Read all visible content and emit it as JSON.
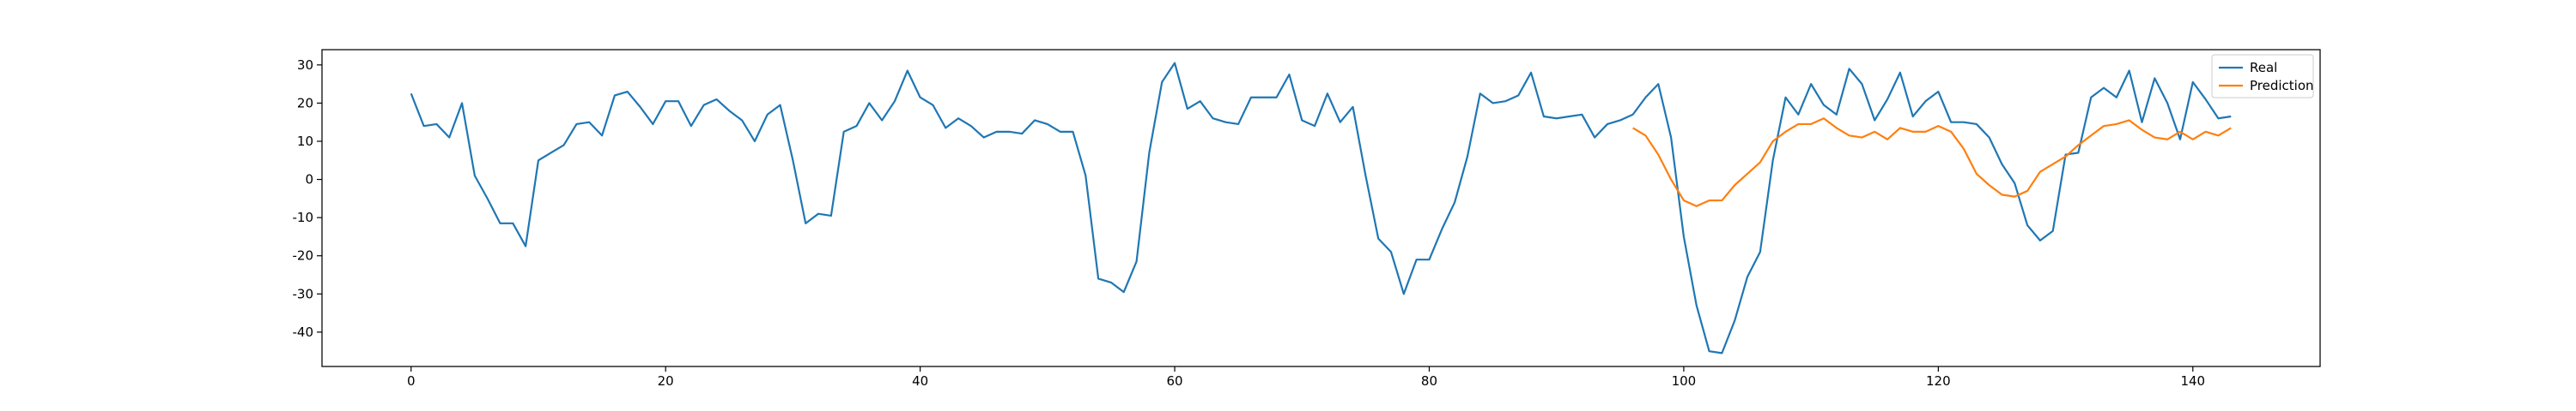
{
  "chart_data": {
    "type": "line",
    "title": "",
    "xlabel": "",
    "ylabel": "",
    "xlim": [
      -7,
      150
    ],
    "ylim": [
      -49,
      34
    ],
    "xticks": [
      0,
      20,
      40,
      60,
      80,
      100,
      120,
      140
    ],
    "yticks": [
      -40,
      -30,
      -20,
      -10,
      0,
      10,
      20,
      30
    ],
    "grid": false,
    "legend_position": "top-right",
    "series": [
      {
        "name": "Real",
        "color": "#1f77b4",
        "x": [
          0,
          1,
          2,
          3,
          4,
          5,
          6,
          7,
          8,
          9,
          10,
          11,
          12,
          13,
          14,
          15,
          16,
          17,
          18,
          19,
          20,
          21,
          22,
          23,
          24,
          25,
          26,
          27,
          28,
          29,
          30,
          31,
          32,
          33,
          34,
          35,
          36,
          37,
          38,
          39,
          40,
          41,
          42,
          43,
          44,
          45,
          46,
          47,
          48,
          49,
          50,
          51,
          52,
          53,
          54,
          55,
          56,
          57,
          58,
          59,
          60,
          61,
          62,
          63,
          64,
          65,
          66,
          67,
          68,
          69,
          70,
          71,
          72,
          73,
          74,
          75,
          76,
          77,
          78,
          79,
          80,
          81,
          82,
          83,
          84,
          85,
          86,
          87,
          88,
          89,
          90,
          91,
          92,
          93,
          94,
          95,
          96,
          97,
          98,
          99,
          100,
          101,
          102,
          103,
          104,
          105,
          106,
          107,
          108,
          109,
          110,
          111,
          112,
          113,
          114,
          115,
          116,
          117,
          118,
          119,
          120,
          121,
          122,
          123,
          124,
          125,
          126,
          127,
          128,
          129,
          130,
          131,
          132,
          133,
          134,
          135,
          136,
          137,
          138,
          139,
          140,
          141,
          142,
          143
        ],
        "y": [
          22.5,
          14,
          14.5,
          11,
          20,
          1,
          -5,
          -11.5,
          -11.5,
          -17.5,
          5,
          7,
          9,
          14.5,
          15,
          11.5,
          22,
          23,
          19,
          14.5,
          20.5,
          20.5,
          14,
          19.5,
          21,
          18,
          15.5,
          10,
          17,
          19.5,
          5,
          -11.5,
          -9,
          -9.5,
          12.5,
          14,
          20,
          15.5,
          20.5,
          28.5,
          21.5,
          19.5,
          13.5,
          16,
          14,
          11,
          12.5,
          12.5,
          12,
          15.5,
          14.5,
          12.5,
          12.5,
          1,
          -26,
          -27,
          -29.5,
          -21.5,
          7,
          25.5,
          30.5,
          18.5,
          20.5,
          16,
          15,
          14.5,
          21.5,
          21.5,
          21.5,
          27.5,
          15.5,
          14,
          22.5,
          15,
          19,
          1,
          -15.5,
          -19,
          -30,
          -21,
          -21,
          -13,
          -6,
          6,
          22.5,
          20,
          20.5,
          22,
          28,
          16.5,
          16,
          16.5,
          17,
          11,
          14.5,
          15.5,
          17,
          21.5,
          25,
          11,
          -15,
          -33,
          -45,
          -45.5,
          -37,
          -25.5,
          -19,
          5,
          21.5,
          17,
          25,
          19.5,
          17,
          29,
          25,
          15.5,
          21,
          28,
          16.5,
          20.5,
          23,
          15,
          15,
          14.5,
          11,
          4,
          -1,
          -12,
          -16,
          -13.5,
          6.5,
          7,
          21.5,
          24,
          21.5,
          28.5,
          15,
          26.5,
          20,
          10.5,
          25.5,
          21,
          16,
          16.5
        ]
      },
      {
        "name": "Prediction",
        "color": "#ff7f0e",
        "x": [
          96,
          97,
          98,
          99,
          100,
          101,
          102,
          103,
          104,
          105,
          106,
          107,
          108,
          109,
          110,
          111,
          112,
          113,
          114,
          115,
          116,
          117,
          118,
          119,
          120,
          121,
          122,
          123,
          124,
          125,
          126,
          127,
          128,
          129,
          130,
          131,
          132,
          133,
          134,
          135,
          136,
          137,
          138,
          139,
          140,
          141,
          142,
          143
        ],
        "y": [
          13.5,
          11.5,
          6.5,
          0,
          -5.5,
          -7,
          -5.5,
          -5.5,
          -1.5,
          1.5,
          4.5,
          10,
          12.5,
          14.5,
          14.5,
          16,
          13.5,
          11.5,
          11,
          12.5,
          10.5,
          13.5,
          12.5,
          12.5,
          14,
          12.5,
          8,
          1.5,
          -1.5,
          -4,
          -4.5,
          -3,
          2,
          4,
          6,
          9,
          11.5,
          14,
          14.5,
          15.5,
          13,
          11,
          10.5,
          12.5,
          10.5,
          12.5,
          11.5,
          13.5
        ]
      }
    ]
  }
}
